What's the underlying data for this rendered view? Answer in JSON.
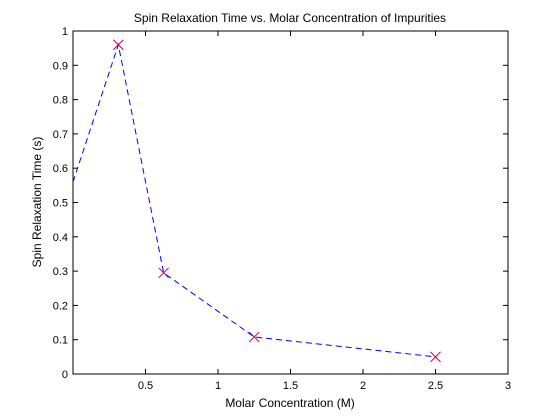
{
  "chart_data": {
    "type": "line",
    "title": "Spin Relaxation Time vs. Molar Concentration of Impurities",
    "xlabel": "Molar Concentration (M)",
    "ylabel": "Spin Relaxation Time (s)",
    "xlim": [
      0,
      3
    ],
    "ylim": [
      0,
      1
    ],
    "xticks": [
      0.5,
      1,
      1.5,
      2,
      2.5,
      3
    ],
    "xtick_labels": [
      "0.5",
      "1",
      "1.5",
      "2",
      "2.5",
      "3"
    ],
    "yticks": [
      0,
      0.1,
      0.2,
      0.3,
      0.4,
      0.5,
      0.6,
      0.7,
      0.8,
      0.9,
      1
    ],
    "ytick_labels": [
      "0",
      "0.1",
      "0.2",
      "0.3",
      "0.4",
      "0.5",
      "0.6",
      "0.7",
      "0.8",
      "0.9",
      "1"
    ],
    "grid": false,
    "line": {
      "style": "dashed",
      "color": "#0000ff",
      "x": [
        0,
        0.3125,
        0.625,
        1.25,
        2.5
      ],
      "y": [
        0.56,
        0.96,
        0.295,
        0.108,
        0.05
      ]
    },
    "markers": {
      "shape": "x",
      "color": "#cc0055",
      "x": [
        0.3125,
        0.625,
        1.25,
        2.5
      ],
      "y": [
        0.96,
        0.295,
        0.108,
        0.05
      ]
    }
  }
}
